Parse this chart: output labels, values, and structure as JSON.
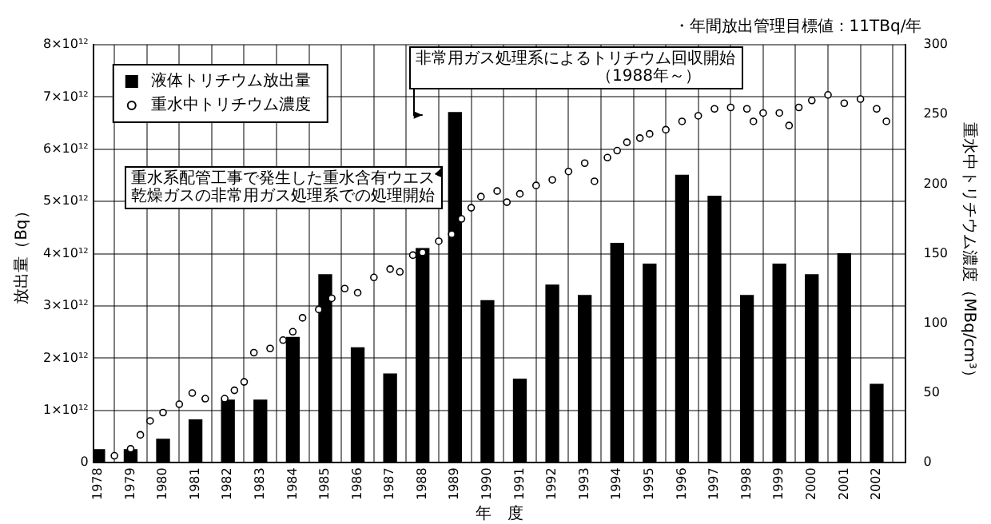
{
  "chart_data": {
    "type": "bar",
    "xlabel": "年　度",
    "ylabel": "放出量（Bq）",
    "y2label": "重水中トリチウム濃度（MBq/cm³）",
    "annotations": [
      "・年間放出管理目標値：11TBq/年",
      "非常用ガス処理系によるトリチウム回収開始",
      "（1988年～）",
      "重水系配管工事で発生した重水含有ウエス",
      "乾燥ガスの非常用ガス処理系での処理開始"
    ],
    "x": [
      1978,
      1979,
      1980,
      1981,
      1982,
      1983,
      1984,
      1985,
      1986,
      1987,
      1988,
      1989,
      1990,
      1991,
      1992,
      1993,
      1994,
      1995,
      1996,
      1997,
      1998,
      1999,
      2000,
      2001,
      2002
    ],
    "xlim": [
      1977.85,
      2002.9
    ],
    "xticks": [
      1978,
      1979,
      1980,
      1981,
      1982,
      1983,
      1984,
      1985,
      1986,
      1987,
      1988,
      1989,
      1990,
      1991,
      1992,
      1993,
      1994,
      1995,
      1996,
      1997,
      1998,
      1999,
      2000,
      2001,
      2002
    ],
    "ylim": [
      0,
      8000000000000.0
    ],
    "yticks": [
      0,
      {
        "value": 1000000000000.0,
        "label": "1×10¹²"
      },
      {
        "value": 2000000000000.0,
        "label": "2×10¹²"
      },
      {
        "value": 3000000000000.0,
        "label": "3×10¹²"
      },
      {
        "value": 4000000000000.0,
        "label": "4×10¹²"
      },
      {
        "value": 5000000000000.0,
        "label": "5×10¹²"
      },
      {
        "value": 6000000000000.0,
        "label": "6×10¹²"
      },
      {
        "value": 7000000000000.0,
        "label": "7×10¹²"
      },
      {
        "value": 8000000000000.0,
        "label": "8×10¹²"
      }
    ],
    "y2lim": [
      0,
      300
    ],
    "y2ticks": [
      0,
      50,
      100,
      150,
      200,
      250,
      300
    ],
    "grid": true,
    "legend": "top left",
    "marker": "circle",
    "series": [
      {
        "name": "液体トリチウム放出量",
        "color": "#000000",
        "values": [
          250000000000.0,
          250000000000.0,
          450000000000.0,
          820000000000.0,
          1200000000000.0,
          1200000000000.0,
          2400000000000.0,
          3600000000000.0,
          2200000000000.0,
          1700000000000.0,
          4100000000000.0,
          6700000000000.0,
          3100000000000.0,
          1600000000000.0,
          3400000000000.0,
          3200000000000.0,
          4200000000000.0,
          3800000000000.0,
          5500000000000.0,
          5100000000000.0,
          3200000000000.0,
          3800000000000.0,
          3600000000000.0,
          4000000000000.0,
          1500000000000.0
        ]
      },
      {
        "name": "重水中トリチウム濃度",
        "type": "scatter",
        "axis": "y2",
        "color": "#000000",
        "x": [
          1978.5,
          1979,
          1979.3,
          1979.6,
          1980,
          1980.5,
          1980.9,
          1981.3,
          1981.9,
          1982.2,
          1982.5,
          1982.8,
          1983.3,
          1983.7,
          1984,
          1984.3,
          1984.8,
          1985.2,
          1985.6,
          1986,
          1986.5,
          1987,
          1987.3,
          1987.7,
          1988,
          1988.5,
          1988.9,
          1989.2,
          1989.5,
          1989.8,
          1990.3,
          1990.6,
          1991,
          1991.5,
          1992,
          1992.5,
          1993,
          1993.3,
          1993.7,
          1994,
          1994.3,
          1994.7,
          1995,
          1995.5,
          1996,
          1996.5,
          1997,
          1997.5,
          1998,
          1998.2,
          1998.5,
          1999,
          1999.3,
          1999.6,
          2000,
          2000.5,
          2001,
          2001.5,
          2002,
          2002.3
        ],
        "values": [
          5,
          10,
          20,
          30,
          36,
          42,
          50,
          46,
          46,
          52,
          58,
          79,
          82,
          88,
          94,
          104,
          110,
          118,
          125,
          122,
          133,
          139,
          137,
          149,
          151,
          159,
          164,
          175,
          183,
          191,
          195,
          187,
          193,
          199,
          203,
          209,
          215,
          202,
          219,
          224,
          230,
          233,
          236,
          239,
          245,
          249,
          254,
          255,
          254,
          245,
          251,
          251,
          242,
          255,
          260,
          264,
          258,
          261,
          254,
          245
        ]
      }
    ]
  }
}
